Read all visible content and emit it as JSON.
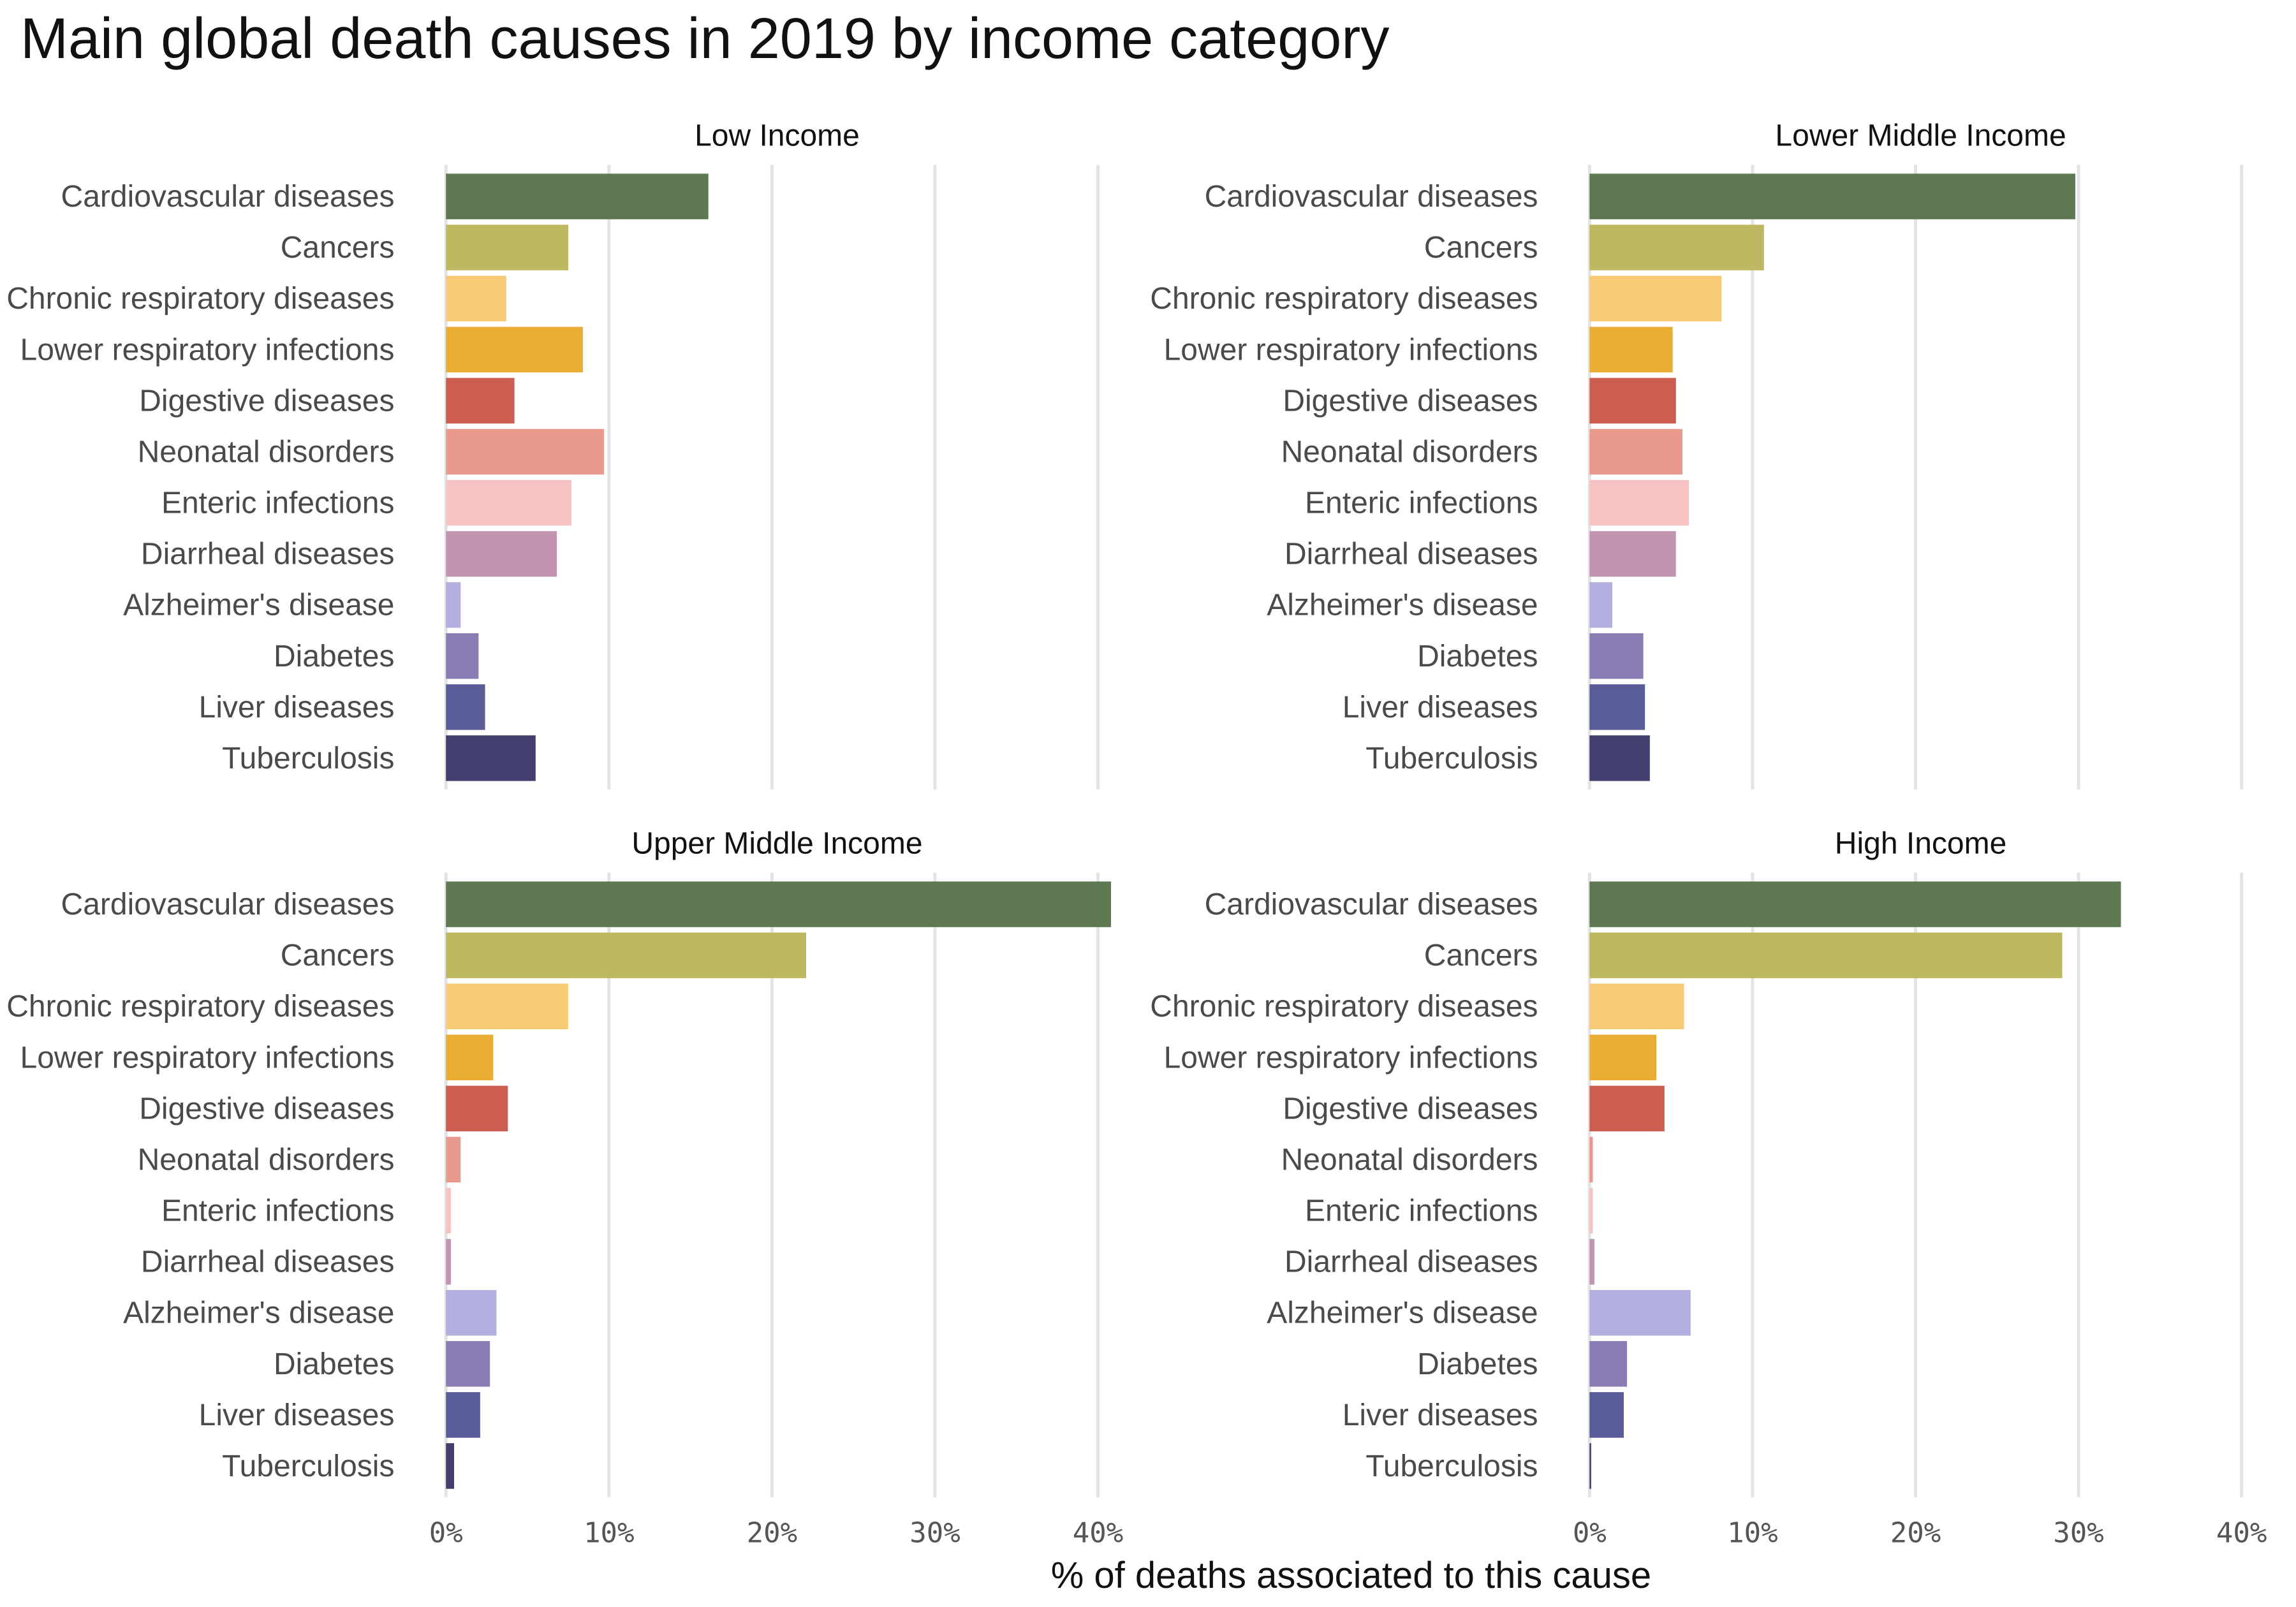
{
  "title": "Main global death causes in 2019 by income category",
  "chart_data": {
    "type": "bar",
    "orientation": "horizontal",
    "title": "Main global death causes in 2019 by income category",
    "xlabel": "% of deaths associated to this cause",
    "ylabel": "",
    "xlim": [
      0,
      40
    ],
    "x_ticks": [
      "0%",
      "10%",
      "20%",
      "30%",
      "40%"
    ],
    "grid": "vertical major",
    "legend": "none",
    "categories": [
      "Cardiovascular diseases",
      "Cancers",
      "Chronic respiratory diseases",
      "Lower respiratory infections",
      "Digestive diseases",
      "Neonatal disorders",
      "Enteric infections",
      "Diarrheal diseases",
      "Alzheimer's disease",
      "Diabetes",
      "Liver diseases",
      "Tuberculosis"
    ],
    "colors": [
      "#5e7852",
      "#bfb862",
      "#f7cb76",
      "#eaad34",
      "#cc5d51",
      "#ea9a8d",
      "#f7c2c2",
      "#c294b0",
      "#b2b0e0",
      "#8b7cb3",
      "#595c98",
      "#423e6e"
    ],
    "series": [
      {
        "name": "Low Income",
        "values": [
          16.1,
          7.5,
          3.7,
          8.4,
          4.2,
          9.7,
          7.7,
          6.8,
          0.9,
          2.0,
          2.4,
          5.5
        ]
      },
      {
        "name": "Lower Middle Income",
        "values": [
          29.8,
          10.7,
          8.1,
          5.1,
          5.3,
          5.7,
          6.1,
          5.3,
          1.4,
          3.3,
          3.4,
          3.7
        ]
      },
      {
        "name": "Upper Middle Income",
        "values": [
          40.8,
          22.1,
          7.5,
          2.9,
          3.8,
          0.9,
          0.3,
          0.3,
          3.1,
          2.7,
          2.1,
          0.5
        ]
      },
      {
        "name": "High Income",
        "values": [
          32.6,
          29.0,
          5.8,
          4.1,
          4.6,
          0.2,
          0.2,
          0.3,
          6.2,
          2.3,
          2.1,
          0.1
        ]
      }
    ]
  }
}
